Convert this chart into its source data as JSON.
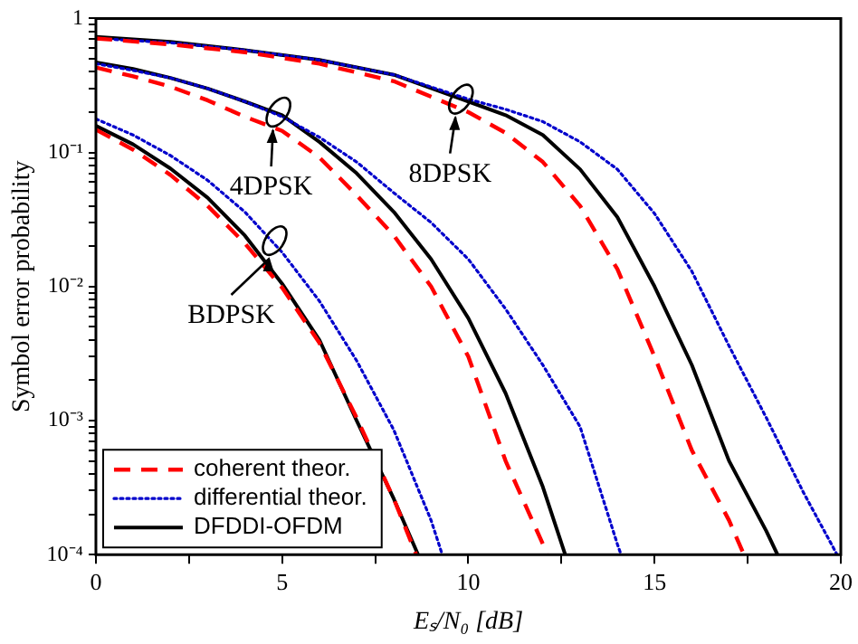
{
  "chart_data": {
    "type": "line",
    "xlabel": "Eₛ/N₀ [dB]",
    "ylabel": "Symbol error probability",
    "log": "y",
    "grid": false,
    "legend": "bottom left",
    "marker": "none",
    "xlim": [
      0,
      20
    ],
    "xticks": [
      0,
      {
        "value": 2.5,
        "label": null
      },
      5,
      {
        "value": 7.5,
        "label": null
      },
      10,
      {
        "value": 12.5,
        "label": null
      },
      15,
      {
        "value": 17.5,
        "label": null
      },
      20
    ],
    "ylim": [
      0.0001,
      1
    ],
    "yticks": [
      {
        "value": 0.0001,
        "label": "10⁻⁴"
      },
      {
        "value": 0.0002,
        "label": null
      },
      {
        "value": 0.0003,
        "label": null
      },
      {
        "value": 0.0004,
        "label": null
      },
      {
        "value": 0.0005,
        "label": null
      },
      {
        "value": 0.0006,
        "label": null
      },
      {
        "value": 0.0007,
        "label": null
      },
      {
        "value": 0.0008,
        "label": null
      },
      {
        "value": 0.0009,
        "label": null
      },
      {
        "value": 0.001,
        "label": "10⁻³"
      },
      {
        "value": 0.002,
        "label": null
      },
      {
        "value": 0.003,
        "label": null
      },
      {
        "value": 0.004,
        "label": null
      },
      {
        "value": 0.005,
        "label": null
      },
      {
        "value": 0.006,
        "label": null
      },
      {
        "value": 0.007,
        "label": null
      },
      {
        "value": 0.008,
        "label": null
      },
      {
        "value": 0.009,
        "label": null
      },
      {
        "value": 0.01,
        "label": "10⁻²"
      },
      {
        "value": 0.02,
        "label": null
      },
      {
        "value": 0.03,
        "label": null
      },
      {
        "value": 0.04,
        "label": null
      },
      {
        "value": 0.05,
        "label": null
      },
      {
        "value": 0.06,
        "label": null
      },
      {
        "value": 0.07,
        "label": null
      },
      {
        "value": 0.08,
        "label": null
      },
      {
        "value": 0.09,
        "label": null
      },
      {
        "value": 0.1,
        "label": "10⁻¹"
      },
      {
        "value": 0.2,
        "label": null
      },
      {
        "value": 0.3,
        "label": null
      },
      {
        "value": 0.4,
        "label": null
      },
      {
        "value": 0.5,
        "label": null
      },
      {
        "value": 0.6,
        "label": null
      },
      {
        "value": 0.7,
        "label": null
      },
      {
        "value": 0.8,
        "label": null
      },
      {
        "value": 0.9,
        "label": null
      },
      1
    ],
    "series": [
      {
        "name": "coherent theor.",
        "color": "#ff0000",
        "line_style": "dashed",
        "x": [
          0,
          1,
          2,
          3,
          4,
          5,
          6,
          7,
          8,
          8.6
        ],
        "values": [
          0.148,
          0.105,
          0.068,
          0.04,
          0.021,
          0.0098,
          0.0038,
          0.00105,
          0.00026,
          0.0001
        ]
      },
      {
        "name": "differential theor.",
        "color": "#0000cc",
        "line_style": "dotted",
        "x": [
          0,
          1,
          2,
          3,
          4,
          5,
          6,
          7,
          8,
          9,
          9.3
        ],
        "values": [
          0.178,
          0.135,
          0.095,
          0.062,
          0.036,
          0.018,
          0.0078,
          0.0028,
          0.00085,
          0.00018,
          0.0001
        ]
      },
      {
        "name": "DFDDI-OFDM",
        "color": "#000000",
        "line_style": "solid",
        "x": [
          0,
          1,
          2,
          3,
          4,
          5,
          6,
          7,
          8,
          8.65
        ],
        "values": [
          0.158,
          0.115,
          0.076,
          0.046,
          0.024,
          0.0105,
          0.004,
          0.001,
          0.00026,
          0.0001
        ]
      },
      {
        "color": "#ff0000",
        "line_style": "dashed",
        "x": [
          0,
          1,
          2,
          3,
          4,
          5,
          6,
          7,
          8,
          9,
          10,
          11,
          12,
          12.1
        ],
        "values": [
          0.43,
          0.37,
          0.31,
          0.245,
          0.185,
          0.145,
          0.092,
          0.048,
          0.024,
          0.01,
          0.003,
          0.0005,
          0.00012,
          0.0001
        ]
      },
      {
        "color": "#0000cc",
        "line_style": "dotted",
        "x": [
          0,
          1,
          2,
          3,
          4,
          5,
          6,
          7,
          8,
          9,
          10,
          11,
          12,
          13,
          14,
          14.1
        ],
        "values": [
          0.46,
          0.41,
          0.36,
          0.3,
          0.24,
          0.185,
          0.13,
          0.085,
          0.05,
          0.03,
          0.016,
          0.0068,
          0.0026,
          0.0009,
          0.00012,
          0.0001
        ]
      },
      {
        "color": "#000000",
        "line_style": "solid",
        "x": [
          0,
          1,
          2,
          3,
          4,
          5,
          6,
          7,
          8,
          9,
          10,
          11,
          12,
          12.6
        ],
        "values": [
          0.47,
          0.42,
          0.36,
          0.3,
          0.24,
          0.19,
          0.12,
          0.07,
          0.036,
          0.016,
          0.0058,
          0.0016,
          0.00032,
          0.0001
        ]
      },
      {
        "color": "#ff0000",
        "line_style": "dashed",
        "x": [
          0,
          2,
          4,
          6,
          8,
          10,
          11,
          12,
          13,
          14,
          15,
          16,
          17,
          17.4
        ],
        "values": [
          0.71,
          0.64,
          0.56,
          0.46,
          0.34,
          0.2,
          0.14,
          0.085,
          0.04,
          0.0135,
          0.003,
          0.0006,
          0.00018,
          0.0001
        ]
      },
      {
        "color": "#0000cc",
        "line_style": "dotted",
        "x": [
          0,
          2,
          4,
          6,
          8,
          10,
          11,
          12,
          13,
          14,
          15,
          16,
          17,
          18,
          19,
          19.9
        ],
        "values": [
          0.71,
          0.66,
          0.58,
          0.49,
          0.38,
          0.25,
          0.21,
          0.17,
          0.12,
          0.075,
          0.035,
          0.013,
          0.0036,
          0.00105,
          0.00029,
          0.0001
        ]
      },
      {
        "color": "#000000",
        "line_style": "solid",
        "x": [
          0,
          2,
          4,
          6,
          8,
          10,
          11,
          12,
          13,
          14,
          15,
          16,
          17,
          18,
          18.3
        ],
        "values": [
          0.73,
          0.67,
          0.58,
          0.49,
          0.38,
          0.24,
          0.19,
          0.135,
          0.075,
          0.033,
          0.01,
          0.0026,
          0.0005,
          0.00015,
          0.0001
        ]
      }
    ],
    "annotations": [
      {
        "text": "BDPSK",
        "x": 4.8,
        "y": 0.022
      },
      {
        "text": "4DPSK",
        "x": 4.9,
        "y": 0.2
      },
      {
        "text": "8DPSK",
        "x": 9.8,
        "y": 0.25
      }
    ]
  }
}
